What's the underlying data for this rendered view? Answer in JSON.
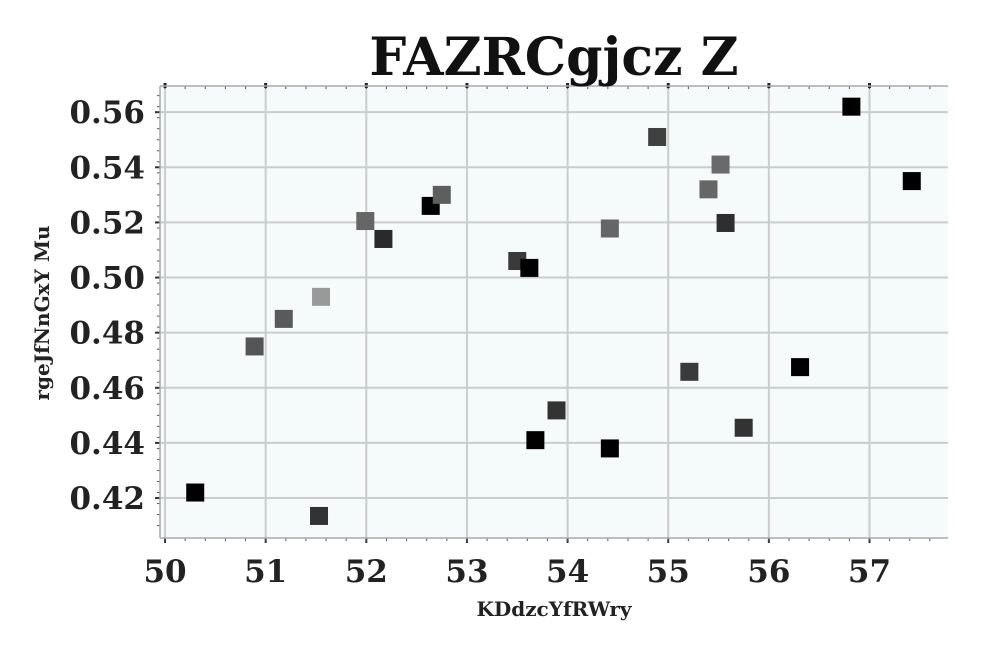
{
  "chart_data": {
    "type": "scatter",
    "title": "FAZRCgjcz Z",
    "xlabel": "KDdzcYfRWry",
    "ylabel": "rgeJfNnGxY Mu",
    "xlim": [
      49.95,
      57.78
    ],
    "ylim": [
      0.4055,
      0.5695
    ],
    "x_ticks": [
      50,
      51,
      52,
      53,
      54,
      55,
      56,
      57
    ],
    "y_ticks": [
      0.42,
      0.44,
      0.46,
      0.48,
      0.5,
      0.52,
      0.54,
      0.56
    ],
    "x_tick_labels": [
      "50",
      "51",
      "52",
      "53",
      "54",
      "55",
      "56",
      "57"
    ],
    "y_tick_labels": [
      "0.42",
      "0.44",
      "0.46",
      "0.48",
      "0.50",
      "0.52",
      "0.54",
      "0.56"
    ],
    "grid": true,
    "marker": "square",
    "background": "#f5fafb",
    "points": [
      {
        "x": 50.3,
        "y": 0.422,
        "color": "#000000"
      },
      {
        "x": 50.89,
        "y": 0.475,
        "color": "#555555"
      },
      {
        "x": 51.18,
        "y": 0.485,
        "color": "#5a5a5a"
      },
      {
        "x": 51.53,
        "y": 0.4135,
        "color": "#333333"
      },
      {
        "x": 51.55,
        "y": 0.493,
        "color": "#999999"
      },
      {
        "x": 51.99,
        "y": 0.5205,
        "color": "#666666"
      },
      {
        "x": 52.17,
        "y": 0.514,
        "color": "#2a2a2a"
      },
      {
        "x": 52.64,
        "y": 0.526,
        "color": "#000000"
      },
      {
        "x": 52.75,
        "y": 0.53,
        "color": "#5e5e5e"
      },
      {
        "x": 53.5,
        "y": 0.506,
        "color": "#3a3a3a"
      },
      {
        "x": 53.62,
        "y": 0.5035,
        "color": "#000000"
      },
      {
        "x": 53.68,
        "y": 0.441,
        "color": "#000000"
      },
      {
        "x": 53.89,
        "y": 0.4518,
        "color": "#333333"
      },
      {
        "x": 54.42,
        "y": 0.438,
        "color": "#000000"
      },
      {
        "x": 54.42,
        "y": 0.5178,
        "color": "#666666"
      },
      {
        "x": 54.89,
        "y": 0.551,
        "color": "#404040"
      },
      {
        "x": 55.21,
        "y": 0.4658,
        "color": "#3a3a3a"
      },
      {
        "x": 55.4,
        "y": 0.532,
        "color": "#666666"
      },
      {
        "x": 55.52,
        "y": 0.541,
        "color": "#6a6a6a"
      },
      {
        "x": 55.57,
        "y": 0.5198,
        "color": "#2e2e2e"
      },
      {
        "x": 55.75,
        "y": 0.4455,
        "color": "#333333"
      },
      {
        "x": 56.31,
        "y": 0.4675,
        "color": "#000000"
      },
      {
        "x": 56.82,
        "y": 0.562,
        "color": "#000000"
      },
      {
        "x": 57.42,
        "y": 0.535,
        "color": "#000000"
      }
    ]
  }
}
